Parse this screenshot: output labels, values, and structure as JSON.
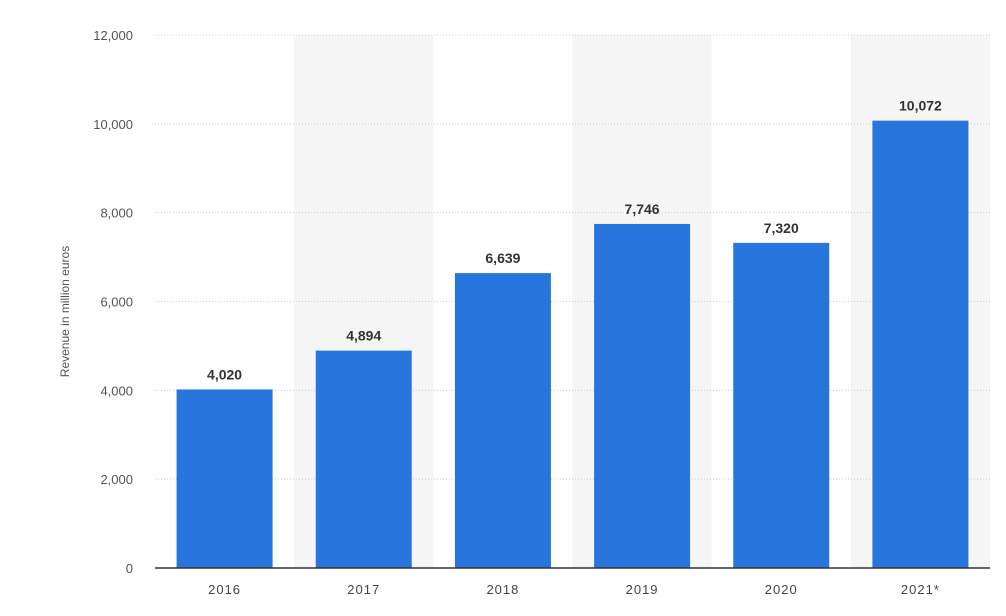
{
  "chart_data": {
    "type": "bar",
    "categories": [
      "2016",
      "2017",
      "2018",
      "2019",
      "2020",
      "2021*"
    ],
    "values": [
      4020,
      4894,
      6639,
      7746,
      7320,
      10072
    ],
    "data_labels": [
      "4,020",
      "4,894",
      "6,639",
      "7,746",
      "7,320",
      "10,072"
    ],
    "xlabel": "",
    "ylabel": "Revenue in million euros",
    "ylim": [
      0,
      12000
    ],
    "yticks": [
      0,
      2000,
      4000,
      6000,
      8000,
      10000,
      12000
    ],
    "ytick_labels": [
      "0",
      "2,000",
      "4,000",
      "6,000",
      "8,000",
      "10,000",
      "12,000"
    ],
    "grid": true,
    "alternating_column_shading": true,
    "colors": {
      "bar": "#2876dd",
      "shade": "#f5f5f5",
      "grid": "#cccccc",
      "axis": "#333333"
    }
  }
}
